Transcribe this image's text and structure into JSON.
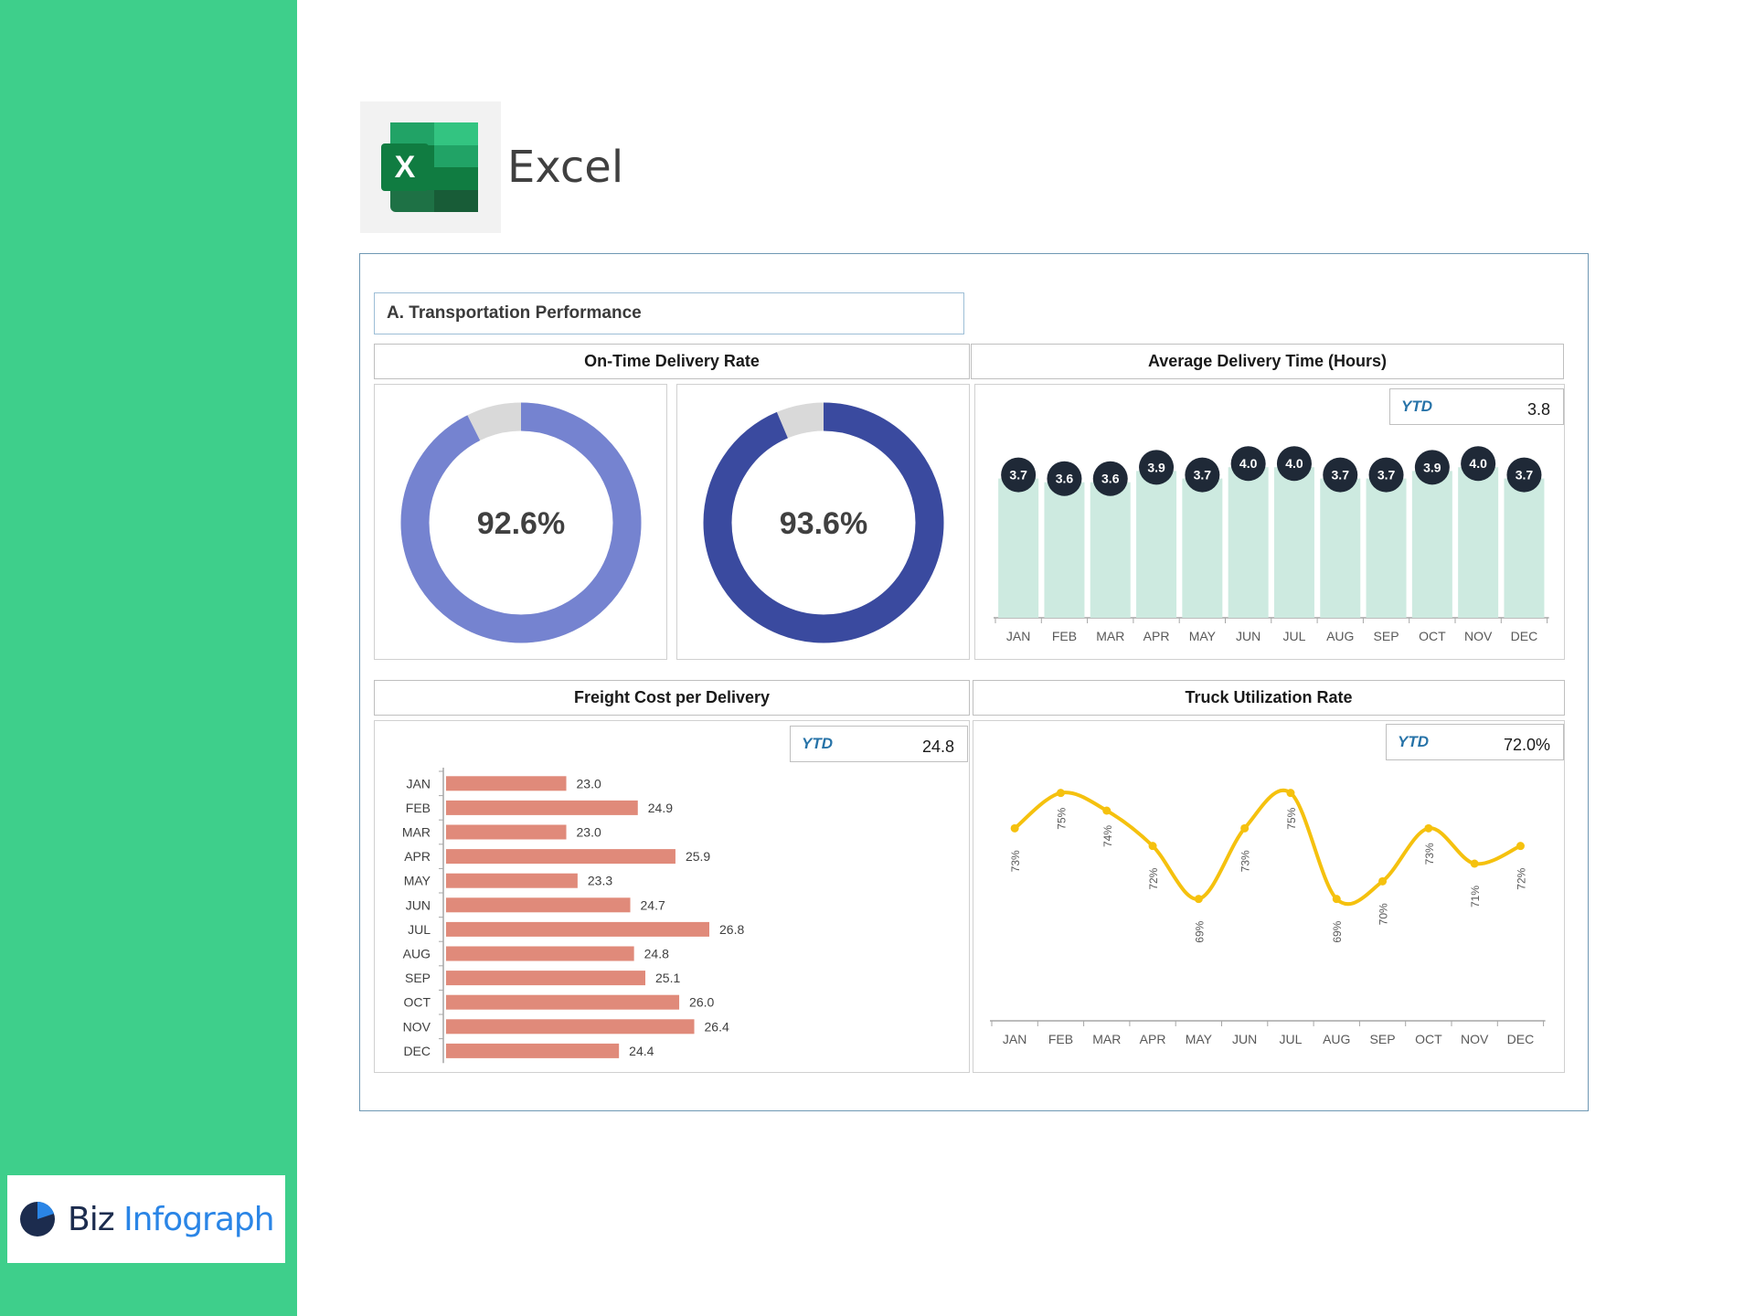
{
  "brand": {
    "part1": "Biz",
    "part2": "Infograph"
  },
  "app": {
    "title": "Excel",
    "icon_letter": "X"
  },
  "dashboard": {
    "section_title": "A. Transportation Performance",
    "ontime": {
      "title": "On-Time Delivery Rate",
      "values": [
        92.6,
        93.6
      ],
      "labels": [
        "92.6%",
        "93.6%"
      ],
      "colors": [
        "#7583d0",
        "#3a4a9f"
      ]
    },
    "avg_time": {
      "title": "Average Delivery Time (Hours)",
      "ytd_label": "YTD",
      "ytd_value": "3.8"
    },
    "freight": {
      "title": "Freight Cost per Delivery",
      "ytd_label": "YTD",
      "ytd_value": "24.8"
    },
    "truck": {
      "title": "Truck Utilization Rate",
      "ytd_label": "YTD",
      "ytd_value": "72.0%"
    }
  },
  "chart_data": [
    {
      "type": "pie",
      "title": "On-Time Delivery Rate",
      "values": [
        92.6,
        7.4
      ],
      "label": "92.6%"
    },
    {
      "type": "pie",
      "title": "On-Time Delivery Rate",
      "values": [
        93.6,
        6.4
      ],
      "label": "93.6%"
    },
    {
      "type": "bar",
      "title": "Average Delivery Time (Hours)",
      "categories": [
        "JAN",
        "FEB",
        "MAR",
        "APR",
        "MAY",
        "JUN",
        "JUL",
        "AUG",
        "SEP",
        "OCT",
        "NOV",
        "DEC"
      ],
      "values": [
        3.7,
        3.6,
        3.6,
        3.9,
        3.7,
        4.0,
        4.0,
        3.7,
        3.7,
        3.9,
        4.0,
        3.7
      ],
      "labels": [
        "3.7",
        "3.6",
        "3.6",
        "3.9",
        "3.7",
        "4.0",
        "4.0",
        "3.7",
        "3.7",
        "3.9",
        "4.0",
        "3.7"
      ],
      "ylim": [
        0,
        4.2
      ],
      "color": "#cdeae0"
    },
    {
      "type": "bar",
      "orientation": "horizontal",
      "title": "Freight Cost per Delivery",
      "categories": [
        "JAN",
        "FEB",
        "MAR",
        "APR",
        "MAY",
        "JUN",
        "JUL",
        "AUG",
        "SEP",
        "OCT",
        "NOV",
        "DEC"
      ],
      "values": [
        23.0,
        24.9,
        23.0,
        25.9,
        23.3,
        24.7,
        26.8,
        24.8,
        25.1,
        26.0,
        26.4,
        24.4
      ],
      "labels": [
        "23.0",
        "24.9",
        "23.0",
        "25.9",
        "23.3",
        "24.7",
        "26.8",
        "24.8",
        "25.1",
        "26.0",
        "26.4",
        "24.4"
      ],
      "xlim": [
        20,
        28
      ],
      "color": "#e08a7a"
    },
    {
      "type": "line",
      "title": "Truck Utilization Rate",
      "categories": [
        "JAN",
        "FEB",
        "MAR",
        "APR",
        "MAY",
        "JUN",
        "JUL",
        "AUG",
        "SEP",
        "OCT",
        "NOV",
        "DEC"
      ],
      "values": [
        73,
        75,
        74,
        72,
        69,
        73,
        75,
        69,
        70,
        73,
        71,
        72
      ],
      "labels": [
        "73%",
        "75%",
        "74%",
        "72%",
        "69%",
        "73%",
        "75%",
        "69%",
        "70%",
        "73%",
        "71%",
        "72%"
      ],
      "ylim": [
        62,
        77
      ],
      "color": "#f5c10e"
    }
  ]
}
